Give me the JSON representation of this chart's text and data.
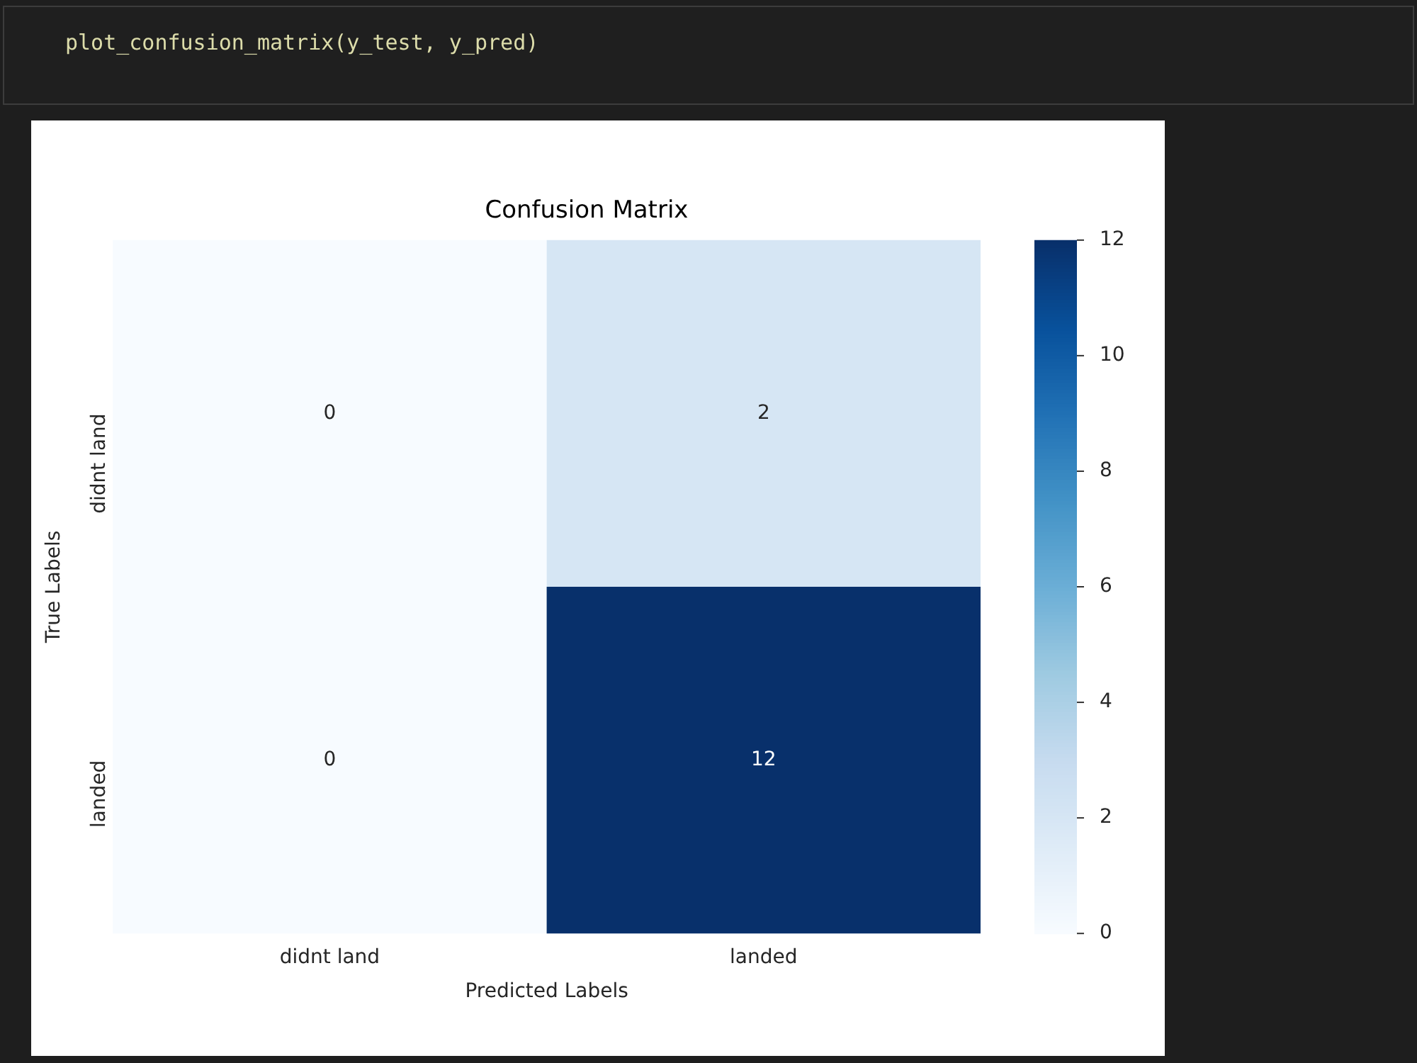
{
  "chart_data": {
    "type": "heatmap",
    "title": "Confusion Matrix",
    "xlabel": "Predicted Labels",
    "ylabel": "True Labels",
    "categories": [
      "didnt land",
      "landed"
    ],
    "y_categories": [
      "didnt land",
      "landed"
    ],
    "cells": [
      [
        0,
        2
      ],
      [
        0,
        12
      ]
    ],
    "data_labels": true,
    "clim": [
      0,
      12
    ],
    "cticks": [
      0,
      2,
      4,
      6,
      8,
      10,
      12
    ],
    "annotations": [
      "plot_confusion_matrix(y_test, y_pred)"
    ]
  }
}
